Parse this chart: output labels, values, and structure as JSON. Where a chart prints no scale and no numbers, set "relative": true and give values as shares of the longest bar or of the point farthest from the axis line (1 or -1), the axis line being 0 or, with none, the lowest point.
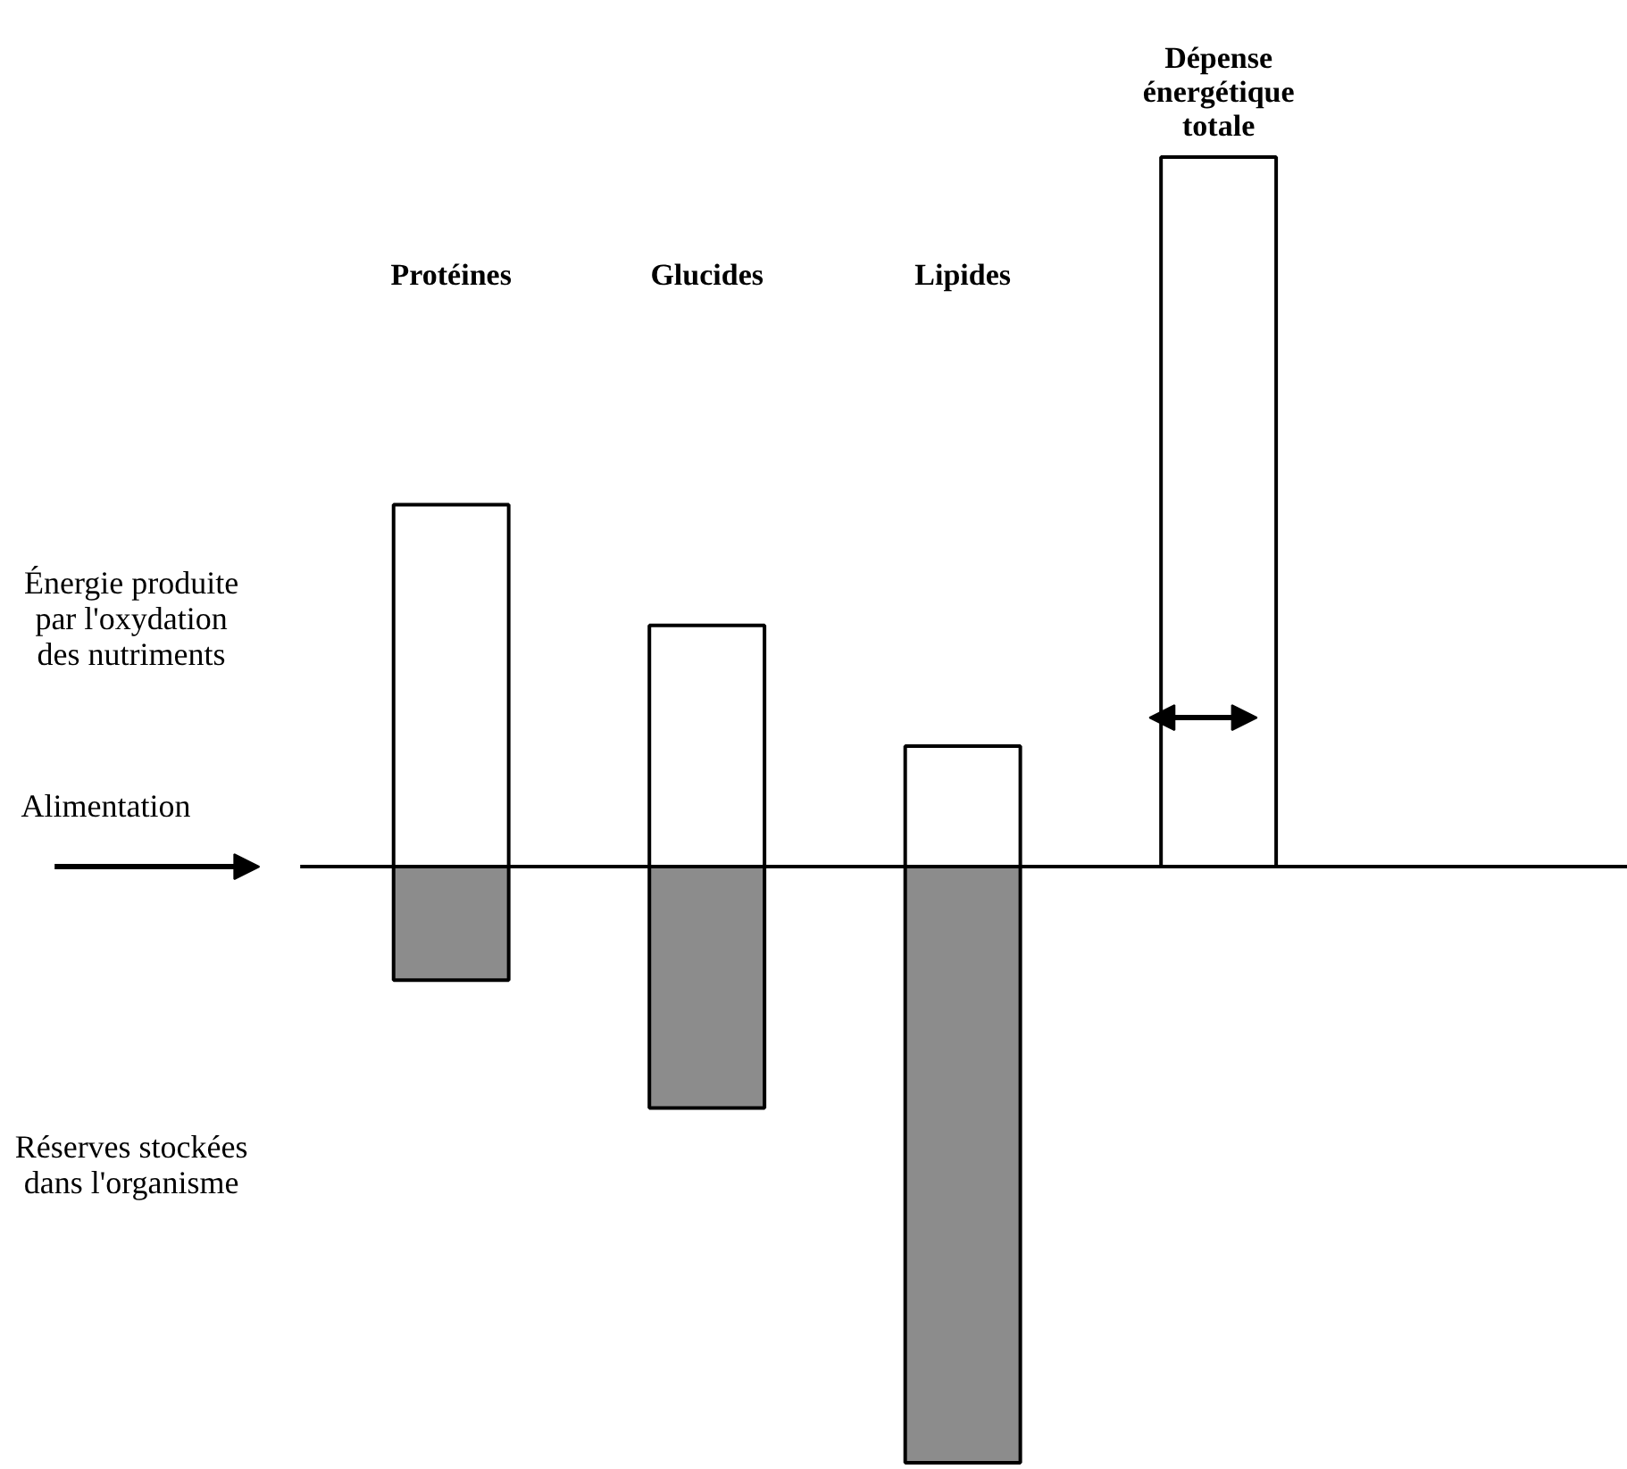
{
  "chart_data": {
    "type": "bar",
    "relative": true,
    "stacked": true,
    "categories": [
      "Protéines",
      "Glucides",
      "Lipides",
      "Dépense\nénergétique\ntotale"
    ],
    "series": [
      {
        "color": "#ffffff",
        "values": [
          0.51,
          0.34,
          0.17,
          1.0
        ]
      },
      {
        "color": "#8c8c8c",
        "values": [
          -0.16,
          -0.34,
          -0.84,
          null
        ]
      }
    ],
    "annotations": [
      "Alimentation",
      "Énergie produite\npar l'oxydation\ndes nutriments",
      "Réserves stockées\ndans l'organisme"
    ]
  }
}
